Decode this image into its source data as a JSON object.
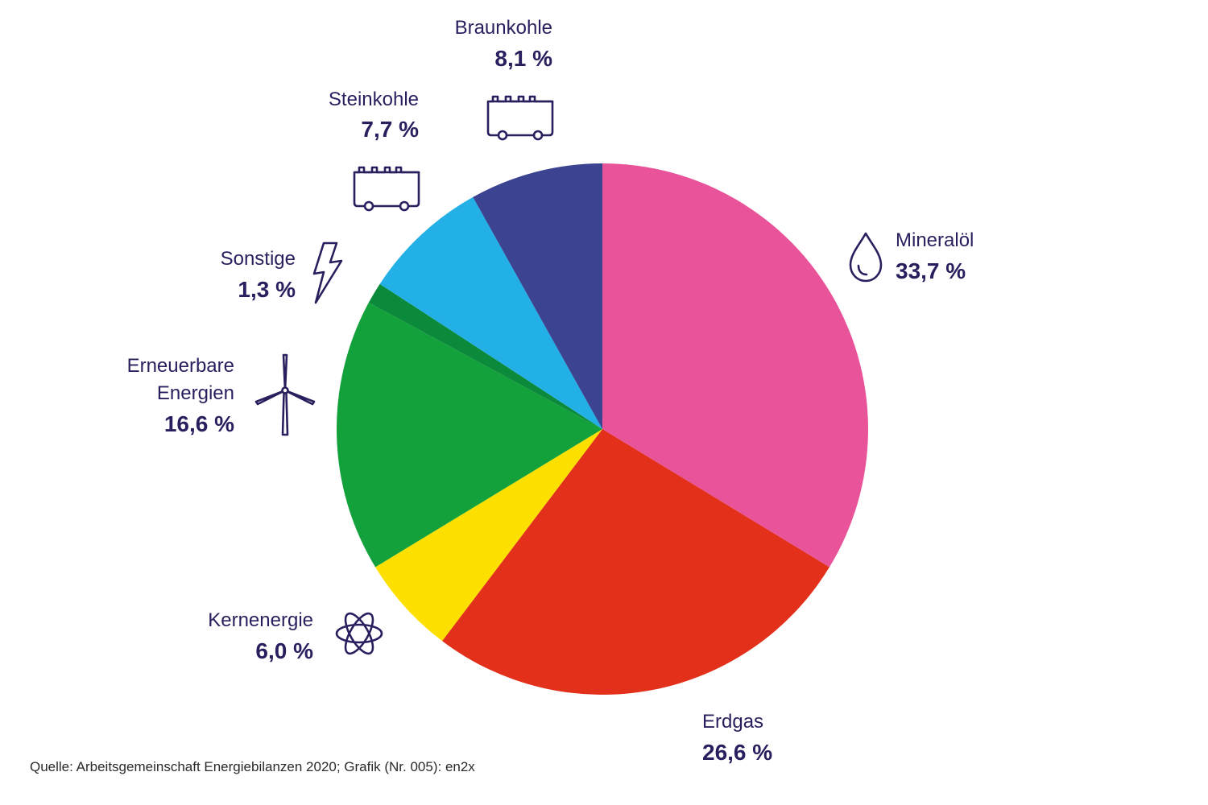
{
  "chart_data": {
    "type": "pie",
    "slices": [
      {
        "label": "Mineralöl",
        "value": 33.7,
        "value_label": "33,7 %",
        "color": "#e8539a",
        "icon": "oil-drop-icon"
      },
      {
        "label": "Erdgas",
        "value": 26.6,
        "value_label": "26,6 %",
        "color": "#e2301b",
        "icon": ""
      },
      {
        "label": "Kernenergie",
        "value": 6.0,
        "value_label": "6,0 %",
        "color": "#fde000",
        "icon": "atom-icon"
      },
      {
        "label": "Erneuerbare Energien",
        "label_lines": [
          "Erneuerbare",
          "Energien"
        ],
        "value": 16.6,
        "value_label": "16,6 %",
        "color": "#13a13b",
        "icon": "wind-turbine-icon"
      },
      {
        "label": "Sonstige",
        "value": 1.3,
        "value_label": "1,3 %",
        "color": "#0a8a3a",
        "icon": "lightning-icon"
      },
      {
        "label": "Steinkohle",
        "value": 7.7,
        "value_label": "7,7 %",
        "color": "#22b0e6",
        "icon": "coal-cart-icon"
      },
      {
        "label": "Braunkohle",
        "value": 8.1,
        "value_label": "8,1 %",
        "color": "#3c4492",
        "icon": "coal-cart-icon"
      }
    ]
  },
  "source": "Quelle: Arbeitsgemeinschaft Energiebilanzen 2020; Grafik (Nr. 005): en2x"
}
